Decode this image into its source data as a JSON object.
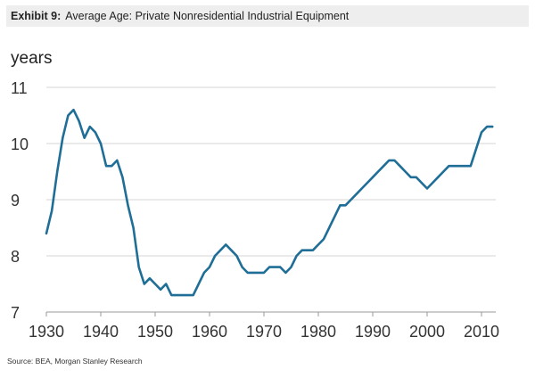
{
  "header": {
    "exhibit_label": "Exhibit 9:",
    "title": "Average Age: Private Nonresidential Industrial Equipment"
  },
  "source": "Source: BEA, Morgan Stanley Research",
  "colors": {
    "line": "#1f6e97",
    "grid": "#d4d4d4",
    "header_bg": "#eeeeee"
  },
  "chart_data": {
    "type": "line",
    "title": "Average Age: Private Nonresidential Industrial Equipment",
    "ylabel": "years",
    "xlabel": "",
    "xlim": [
      1930,
      2013
    ],
    "ylim": [
      7,
      11
    ],
    "x_ticks": [
      1930,
      1940,
      1950,
      1960,
      1970,
      1980,
      1990,
      2000,
      2010
    ],
    "y_ticks": [
      7,
      8,
      9,
      10,
      11
    ],
    "grid": true,
    "legend": "none",
    "series": [
      {
        "x": [
          1930,
          1931,
          1932,
          1933,
          1934,
          1935,
          1936,
          1937,
          1938,
          1939,
          1940,
          1941,
          1942,
          1943,
          1944,
          1945,
          1946,
          1947,
          1948,
          1949,
          1950,
          1951,
          1952,
          1953,
          1954,
          1955,
          1956,
          1957,
          1958,
          1959,
          1960,
          1961,
          1962,
          1963,
          1964,
          1965,
          1966,
          1967,
          1968,
          1969,
          1970,
          1971,
          1972,
          1973,
          1974,
          1975,
          1976,
          1977,
          1978,
          1979,
          1980,
          1981,
          1982,
          1983,
          1984,
          1985,
          1986,
          1987,
          1988,
          1989,
          1990,
          1991,
          1992,
          1993,
          1994,
          1995,
          1996,
          1997,
          1998,
          1999,
          2000,
          2001,
          2002,
          2003,
          2004,
          2005,
          2006,
          2007,
          2008,
          2009,
          2010,
          2011,
          2012
        ],
        "values": [
          8.4,
          8.8,
          9.5,
          10.1,
          10.5,
          10.6,
          10.4,
          10.1,
          10.3,
          10.2,
          10.0,
          9.6,
          9.6,
          9.7,
          9.4,
          8.9,
          8.5,
          7.8,
          7.5,
          7.6,
          7.5,
          7.4,
          7.5,
          7.3,
          7.3,
          7.3,
          7.3,
          7.3,
          7.5,
          7.7,
          7.8,
          8.0,
          8.1,
          8.2,
          8.1,
          8.0,
          7.8,
          7.7,
          7.7,
          7.7,
          7.7,
          7.8,
          7.8,
          7.8,
          7.7,
          7.8,
          8.0,
          8.1,
          8.1,
          8.1,
          8.2,
          8.3,
          8.5,
          8.7,
          8.9,
          8.9,
          9.0,
          9.1,
          9.2,
          9.3,
          9.4,
          9.5,
          9.6,
          9.7,
          9.7,
          9.6,
          9.5,
          9.4,
          9.4,
          9.3,
          9.2,
          9.3,
          9.4,
          9.5,
          9.6,
          9.6,
          9.6,
          9.6,
          9.6,
          9.9,
          10.2,
          10.3,
          10.3
        ]
      }
    ]
  }
}
